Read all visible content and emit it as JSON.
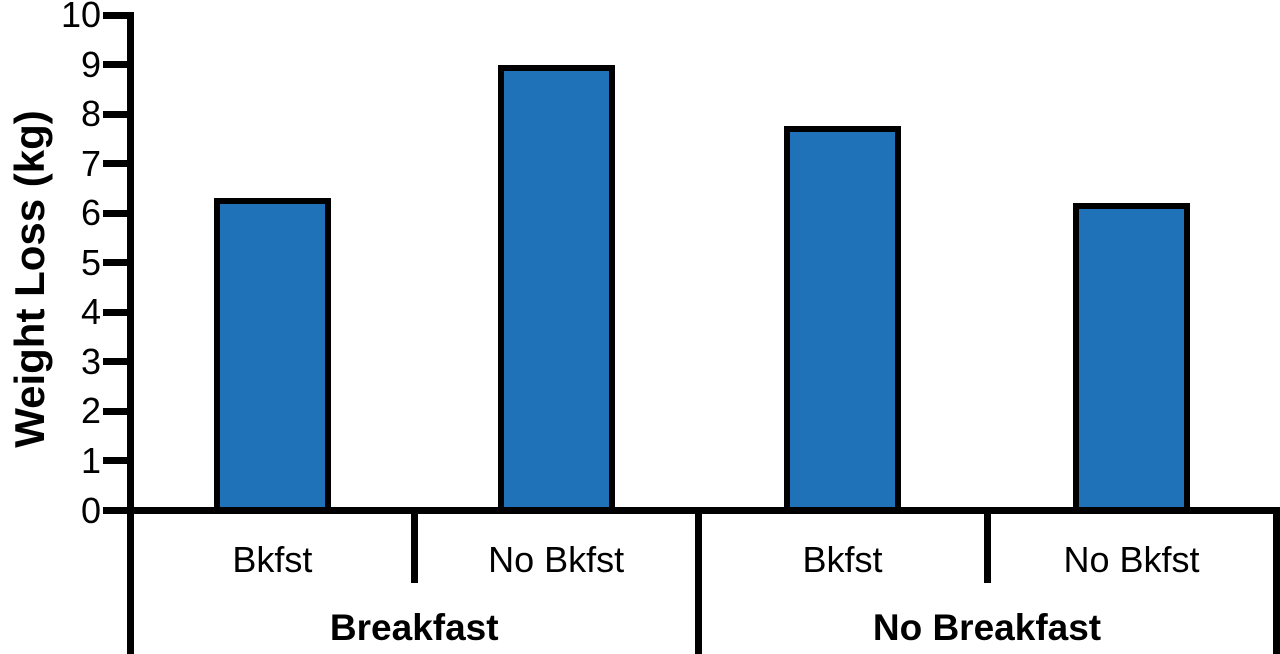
{
  "chart_data": {
    "type": "bar",
    "title": "",
    "xlabel": "",
    "ylabel": "Weight Loss (kg)",
    "ylim": [
      0,
      10
    ],
    "ytick_step": 1,
    "ytick_labels": [
      "0",
      "1",
      "2",
      "3",
      "4",
      "5",
      "6",
      "7",
      "8",
      "9",
      "10"
    ],
    "grid": false,
    "legend_position": "none",
    "bar_fill_color": "#1f72b8",
    "bar_border_color": "#000000",
    "axis_color": "#000000",
    "categories": [
      "Bkfst",
      "No Bkfst",
      "Bkfst",
      "No Bkfst"
    ],
    "values": [
      6.3,
      9.0,
      7.75,
      6.2
    ],
    "groups": [
      {
        "label": "Breakfast",
        "bars": [
          {
            "category": "Bkfst",
            "value": 6.3
          },
          {
            "category": "No Bkfst",
            "value": 9.0
          }
        ]
      },
      {
        "label": "No Breakfast",
        "bars": [
          {
            "category": "Bkfst",
            "value": 7.75
          },
          {
            "category": "No Bkfst",
            "value": 6.2
          }
        ]
      }
    ]
  }
}
